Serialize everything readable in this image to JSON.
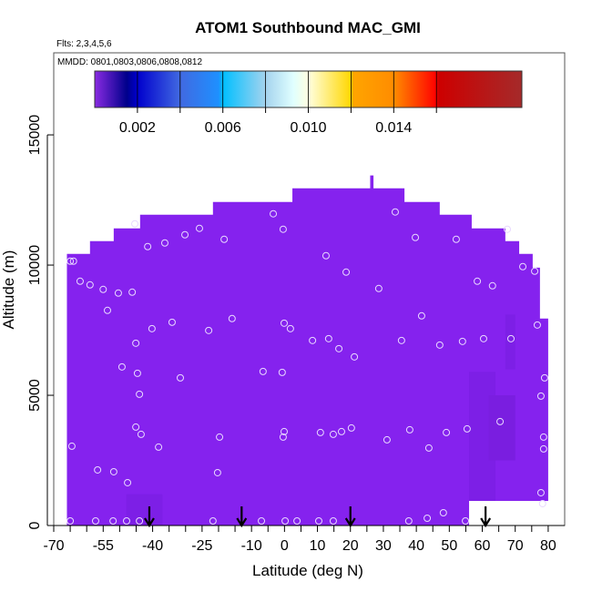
{
  "chart_data": {
    "type": "heatmap",
    "title": "ATOM1 Southbound MAC_GMI",
    "subtitle": "Flts: 2,3,4,5,6",
    "annotation": "MMDD: 0801,0803,0806,0808,0812",
    "xlabel": "Latitude (deg N)",
    "ylabel": "Altitude (m)",
    "xlim": [
      -70,
      85
    ],
    "ylim": [
      0,
      18150
    ],
    "xticks": [
      -70,
      -65,
      -60,
      -55,
      -50,
      -45,
      -40,
      -35,
      -30,
      -25,
      -20,
      -15,
      -10,
      -5,
      0,
      5,
      10,
      15,
      20,
      25,
      30,
      35,
      40,
      45,
      50,
      55,
      60,
      65,
      70,
      75,
      80
    ],
    "xtick_labels": [
      "-70",
      "-55",
      "-40",
      "-25",
      "-10",
      "0",
      "10",
      "20",
      "30",
      "40",
      "50",
      "60",
      "70",
      "80"
    ],
    "xtick_label_values": [
      -70,
      -55,
      -40,
      -25,
      -10,
      0,
      10,
      20,
      30,
      40,
      50,
      60,
      70,
      80
    ],
    "yticks": [
      0,
      5000,
      10000,
      15000
    ],
    "ytick_labels": [
      "0",
      "5000",
      "10000",
      "15000"
    ],
    "colorbar": {
      "range": [
        0,
        0.02
      ],
      "ticks": [
        0.002,
        0.004,
        0.006,
        0.008,
        0.01,
        0.012,
        0.014,
        0.016
      ],
      "labels": [
        "0.002",
        "0.006",
        "0.010",
        "0.014"
      ],
      "label_values": [
        0.002,
        0.006,
        0.01,
        0.014
      ],
      "stops": [
        [
          0,
          "#8a2be2"
        ],
        [
          0.0015,
          "#00008b"
        ],
        [
          0.002,
          "#0000cd"
        ],
        [
          0.004,
          "#4169e1"
        ],
        [
          0.0058,
          "#1e90ff"
        ],
        [
          0.006,
          "#00bfff"
        ],
        [
          0.008,
          "#a4d3ee"
        ],
        [
          0.0093,
          "#e0ffff"
        ],
        [
          0.01,
          "#ffffe0"
        ],
        [
          0.012,
          "#ffd700"
        ],
        [
          0.0121,
          "#ffa500"
        ],
        [
          0.014,
          "#ff8c00"
        ],
        [
          0.016,
          "#ff0000"
        ],
        [
          0.0161,
          "#cd0000"
        ],
        [
          0.02,
          "#a52a2a"
        ]
      ]
    },
    "field_color": "#8522ee",
    "field_value": 0.0001,
    "field_outline": [
      [
        -66,
        0
      ],
      [
        -66,
        10430
      ],
      [
        -59,
        10430
      ],
      [
        -59,
        10920
      ],
      [
        -51.8,
        10920
      ],
      [
        -51.8,
        11410
      ],
      [
        -43.8,
        11410
      ],
      [
        -43.8,
        11935
      ],
      [
        -21.7,
        11935
      ],
      [
        -21.7,
        12425
      ],
      [
        2.4,
        12425
      ],
      [
        2.4,
        12950
      ],
      [
        26,
        12950
      ],
      [
        26,
        13440
      ],
      [
        27,
        13440
      ],
      [
        27,
        12950
      ],
      [
        36.4,
        12950
      ],
      [
        36.4,
        12425
      ],
      [
        47.1,
        12425
      ],
      [
        47.1,
        11935
      ],
      [
        56.8,
        11935
      ],
      [
        56.8,
        11410
      ],
      [
        67,
        11410
      ],
      [
        67,
        10920
      ],
      [
        71.2,
        10920
      ],
      [
        71.2,
        10430
      ],
      [
        75.3,
        10430
      ],
      [
        75.3,
        9900
      ],
      [
        77.5,
        9900
      ],
      [
        77.5,
        7945
      ],
      [
        80,
        7945
      ],
      [
        80,
        945
      ],
      [
        56,
        945
      ],
      [
        56,
        0
      ]
    ],
    "darker_patches": [
      {
        "lat": [
          -48,
          -37
        ],
        "alt": [
          0,
          1200
        ],
        "color": "#7d1fe6"
      },
      {
        "lat": [
          56,
          64
        ],
        "alt": [
          945,
          5900
        ],
        "color": "#7d1fe6"
      },
      {
        "lat": [
          62,
          70
        ],
        "alt": [
          2500,
          5000
        ],
        "color": "#7a1ee0"
      },
      {
        "lat": [
          67,
          70
        ],
        "alt": [
          6000,
          8100
        ],
        "color": "#7d1fe6"
      }
    ],
    "points": [
      [
        -64,
        10150
      ],
      [
        -65,
        10150
      ],
      [
        -62,
        9380
      ],
      [
        -59,
        9240
      ],
      [
        -55,
        9065
      ],
      [
        -50.4,
        8925
      ],
      [
        -46.2,
        8960
      ],
      [
        -53.7,
        8260
      ],
      [
        -45.4,
        11585
      ],
      [
        -41.5,
        10710
      ],
      [
        -36.3,
        10850
      ],
      [
        -30.2,
        11165
      ],
      [
        -25.8,
        11410
      ],
      [
        -18.3,
        10990
      ],
      [
        -3.4,
        11970
      ],
      [
        -0.4,
        11375
      ],
      [
        33.6,
        12040
      ],
      [
        39.7,
        11060
      ],
      [
        52.1,
        10990
      ],
      [
        67.6,
        11375
      ],
      [
        72.3,
        9940
      ],
      [
        75.9,
        9765
      ],
      [
        12.6,
        10360
      ],
      [
        18.7,
        9730
      ],
      [
        28.6,
        9100
      ],
      [
        58.5,
        9380
      ],
      [
        63.1,
        9205
      ],
      [
        -40.2,
        7560
      ],
      [
        -34.1,
        7805
      ],
      [
        -15.9,
        7945
      ],
      [
        -23,
        7490
      ],
      [
        -0.1,
        7770
      ],
      [
        1.8,
        7560
      ],
      [
        8.5,
        7105
      ],
      [
        13.4,
        7175
      ],
      [
        16.5,
        6790
      ],
      [
        21.2,
        6475
      ],
      [
        41.6,
        8050
      ],
      [
        35.5,
        7105
      ],
      [
        47.1,
        6930
      ],
      [
        54,
        7070
      ],
      [
        60.4,
        7175
      ],
      [
        68.7,
        7175
      ],
      [
        76.7,
        7700
      ],
      [
        -45.1,
        7000
      ],
      [
        -49.3,
        6090
      ],
      [
        -44.6,
        5845
      ],
      [
        -44,
        5040
      ],
      [
        -31.6,
        5670
      ],
      [
        -6.5,
        5915
      ],
      [
        -0.7,
        5880
      ],
      [
        78.9,
        5670
      ],
      [
        77.8,
        4970
      ],
      [
        65.4,
        3990
      ],
      [
        -64.5,
        3045
      ],
      [
        -56.7,
        2135
      ],
      [
        -51.8,
        2065
      ],
      [
        -47.6,
        1645
      ],
      [
        -45.1,
        3780
      ],
      [
        -43.5,
        3500
      ],
      [
        -38.2,
        3010
      ],
      [
        -19.7,
        3395
      ],
      [
        -20.3,
        2030
      ],
      [
        -0.1,
        3605
      ],
      [
        -0.4,
        3395
      ],
      [
        10.9,
        3570
      ],
      [
        14.8,
        3500
      ],
      [
        17.3,
        3605
      ],
      [
        20.3,
        3745
      ],
      [
        31.1,
        3290
      ],
      [
        38,
        3675
      ],
      [
        43.8,
        2975
      ],
      [
        49.1,
        3570
      ],
      [
        55.4,
        3710
      ],
      [
        78.6,
        3395
      ],
      [
        78.6,
        2940
      ],
      [
        77.8,
        1260
      ],
      [
        78.3,
        840
      ],
      [
        -65,
        175
      ],
      [
        -57.3,
        175
      ],
      [
        -52,
        175
      ],
      [
        -47.9,
        175
      ],
      [
        -44,
        175
      ],
      [
        -21.7,
        175
      ],
      [
        -7,
        175
      ],
      [
        0.2,
        175
      ],
      [
        3.8,
        175
      ],
      [
        10.4,
        175
      ],
      [
        14.8,
        175
      ],
      [
        37.7,
        175
      ],
      [
        43.3,
        280
      ],
      [
        48.2,
        490
      ],
      [
        54.9,
        175
      ]
    ],
    "flight_arrows_lat": [
      -41,
      -13,
      20,
      61
    ]
  }
}
